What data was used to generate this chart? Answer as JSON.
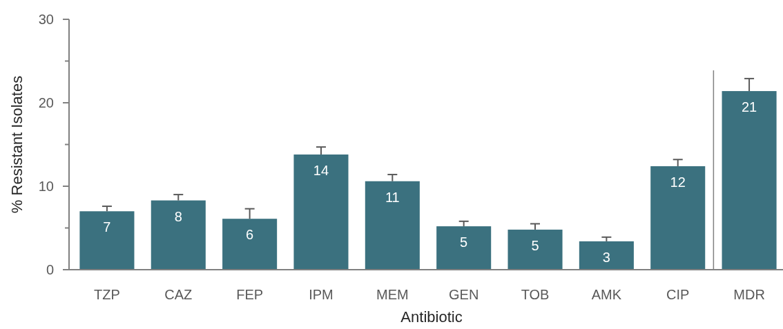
{
  "chart_data": {
    "type": "bar",
    "xlabel": "Antibiotic",
    "ylabel": "% Resistant Isolates",
    "categories": [
      "TZP",
      "CAZ",
      "FEP",
      "IPM",
      "MEM",
      "GEN",
      "TOB",
      "AMK",
      "CIP",
      "MDR"
    ],
    "values": [
      7.0,
      8.3,
      6.1,
      13.8,
      10.6,
      5.2,
      4.8,
      3.4,
      12.4,
      21.4
    ],
    "errors": [
      [
        7.0,
        7.6
      ],
      [
        8.3,
        9.0
      ],
      [
        6.1,
        7.3
      ],
      [
        13.8,
        14.7
      ],
      [
        10.6,
        11.4
      ],
      [
        5.2,
        5.8
      ],
      [
        4.8,
        5.5
      ],
      [
        3.4,
        3.9
      ],
      [
        12.4,
        13.2
      ],
      [
        21.4,
        22.9
      ]
    ],
    "value_labels": [
      "7",
      "8",
      "6",
      "14",
      "11",
      "5",
      "5",
      "3",
      "12",
      "21"
    ],
    "color": "#3b717f",
    "ylim": [
      0,
      30
    ],
    "yticks": [
      0,
      {
        "value": 5,
        "label": null
      },
      10,
      {
        "value": 15,
        "label": null
      },
      20,
      {
        "value": 25,
        "label": null
      },
      30
    ],
    "grid": false
  }
}
